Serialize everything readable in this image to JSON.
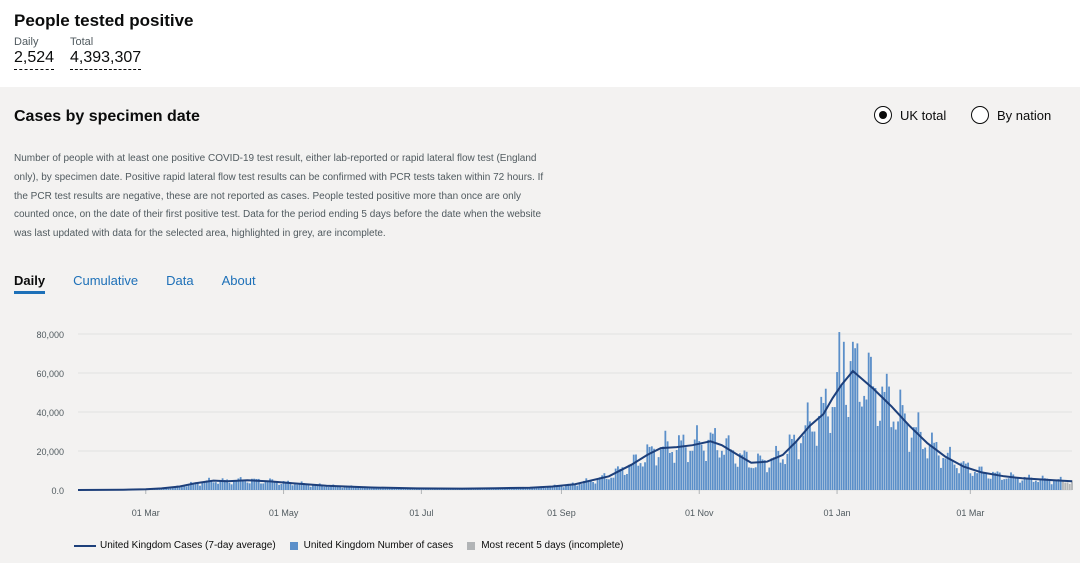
{
  "summary": {
    "title": "People tested positive",
    "daily_label": "Daily",
    "daily_value": "2,524",
    "total_label": "Total",
    "total_value": "4,393,307"
  },
  "card": {
    "title": "Cases by specimen date",
    "radio_uk": "UK total",
    "radio_nation": "By nation",
    "selected": "UK total",
    "description": "Number of people with at least one positive COVID-19 test result, either lab-reported or rapid lateral flow test (England only), by specimen date. Positive rapid lateral flow test results can be confirmed with PCR tests taken within 72 hours. If the PCR test results are negative, these are not reported as cases. People tested positive more than once are only counted once, on the date of their first positive test. Data for the period ending 5 days before the date when the website was last updated with data for the selected area, highlighted in grey, are incomplete.",
    "tabs": [
      "Daily",
      "Cumulative",
      "Data",
      "About"
    ],
    "active_tab": "Daily"
  },
  "colors": {
    "bar": "#5b8fc9",
    "avg_line": "#1d3f7a",
    "incomplete": "#b1b4b6",
    "link": "#1d70b8"
  },
  "chart_data": {
    "type": "bar",
    "title": "Cases by specimen date",
    "ylim": [
      0,
      80000
    ],
    "yticks": [
      {
        "v": 0,
        "label": "0.0"
      },
      {
        "v": 20000,
        "label": "20,000"
      },
      {
        "v": 40000,
        "label": "40,000"
      },
      {
        "v": 60000,
        "label": "60,000"
      },
      {
        "v": 80000,
        "label": "80,000"
      }
    ],
    "xticks": [
      {
        "day": 30,
        "label": "01 Mar"
      },
      {
        "day": 91,
        "label": "01 May"
      },
      {
        "day": 152,
        "label": "01 Jul"
      },
      {
        "day": 214,
        "label": "01 Sep"
      },
      {
        "day": 275,
        "label": "01 Nov"
      },
      {
        "day": 336,
        "label": "01 Jan"
      },
      {
        "day": 395,
        "label": "01 Mar"
      }
    ],
    "x_range_days": [
      0,
      440
    ],
    "incomplete_days": 5,
    "weekly_avg": [
      {
        "day": 0,
        "v": 0
      },
      {
        "day": 10,
        "v": 50
      },
      {
        "day": 20,
        "v": 150
      },
      {
        "day": 30,
        "v": 400
      },
      {
        "day": 37,
        "v": 800
      },
      {
        "day": 45,
        "v": 1800
      },
      {
        "day": 52,
        "v": 3500
      },
      {
        "day": 60,
        "v": 4800
      },
      {
        "day": 66,
        "v": 4500
      },
      {
        "day": 75,
        "v": 5000
      },
      {
        "day": 85,
        "v": 4400
      },
      {
        "day": 95,
        "v": 3500
      },
      {
        "day": 110,
        "v": 2200
      },
      {
        "day": 130,
        "v": 1300
      },
      {
        "day": 150,
        "v": 800
      },
      {
        "day": 170,
        "v": 700
      },
      {
        "day": 185,
        "v": 900
      },
      {
        "day": 200,
        "v": 1200
      },
      {
        "day": 210,
        "v": 1800
      },
      {
        "day": 220,
        "v": 3000
      },
      {
        "day": 235,
        "v": 7000
      },
      {
        "day": 245,
        "v": 13000
      },
      {
        "day": 252,
        "v": 18000
      },
      {
        "day": 258,
        "v": 21500
      },
      {
        "day": 265,
        "v": 22000
      },
      {
        "day": 272,
        "v": 23000
      },
      {
        "day": 280,
        "v": 25000
      },
      {
        "day": 285,
        "v": 23000
      },
      {
        "day": 292,
        "v": 18000
      },
      {
        "day": 298,
        "v": 14000
      },
      {
        "day": 305,
        "v": 14500
      },
      {
        "day": 312,
        "v": 18000
      },
      {
        "day": 318,
        "v": 25000
      },
      {
        "day": 324,
        "v": 33000
      },
      {
        "day": 330,
        "v": 39000
      },
      {
        "day": 334,
        "v": 47000
      },
      {
        "day": 338,
        "v": 54000
      },
      {
        "day": 343,
        "v": 61000
      },
      {
        "day": 346,
        "v": 58000
      },
      {
        "day": 352,
        "v": 52000
      },
      {
        "day": 360,
        "v": 43000
      },
      {
        "day": 368,
        "v": 33000
      },
      {
        "day": 376,
        "v": 24000
      },
      {
        "day": 384,
        "v": 17000
      },
      {
        "day": 392,
        "v": 12000
      },
      {
        "day": 400,
        "v": 9000
      },
      {
        "day": 410,
        "v": 7000
      },
      {
        "day": 418,
        "v": 6000
      },
      {
        "day": 425,
        "v": 5500
      },
      {
        "day": 432,
        "v": 5000
      },
      {
        "day": 440,
        "v": 4500
      }
    ],
    "legend": [
      {
        "kind": "line",
        "label": "United Kingdom Cases (7-day average)"
      },
      {
        "kind": "bar",
        "label": "United Kingdom Number of cases"
      },
      {
        "kind": "incomplete",
        "label": "Most recent 5 days (incomplete)"
      }
    ]
  }
}
